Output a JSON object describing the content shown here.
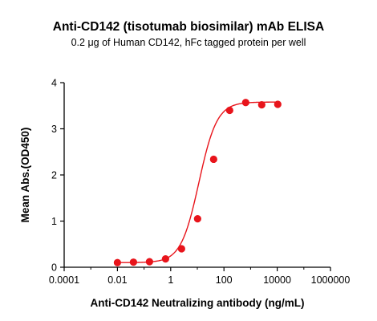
{
  "chart_data": {
    "type": "scatter",
    "title": "Anti-CD142 (tisotumab biosimilar) mAb ELISA",
    "subtitle": "0.2 μg of Human CD142, hFc tagged protein per well",
    "xlabel": "Anti-CD142 Neutralizing antibody (ng/mL)",
    "ylabel": "Mean Abs.(OD450)",
    "x_scale": "log",
    "xlim": [
      0.0001,
      1000000
    ],
    "ylim": [
      0,
      4
    ],
    "x_ticks": [
      0.0001,
      0.01,
      1,
      100,
      10000,
      1000000
    ],
    "x_tick_labels": [
      "0.0001",
      "0.01",
      "1",
      "100",
      "10000",
      "1000000"
    ],
    "y_ticks": [
      0,
      1,
      2,
      3,
      4
    ],
    "y_tick_labels": [
      "0",
      "1",
      "2",
      "3",
      "4"
    ],
    "grid": false,
    "series": [
      {
        "color": "#e8141b",
        "x": [
          0.01,
          0.04,
          0.16,
          0.64,
          2.56,
          10.24,
          40.96,
          163.84,
          655.36,
          2621.44,
          10485.76
        ],
        "y": [
          0.1,
          0.11,
          0.12,
          0.18,
          0.4,
          1.05,
          2.34,
          3.4,
          3.57,
          3.52,
          3.53
        ]
      }
    ],
    "fit_curve": {
      "model": "4PL",
      "bottom": 0.1,
      "top": 3.58,
      "ec50": 11.5,
      "hill": 1.28,
      "color": "#e8141b"
    }
  }
}
